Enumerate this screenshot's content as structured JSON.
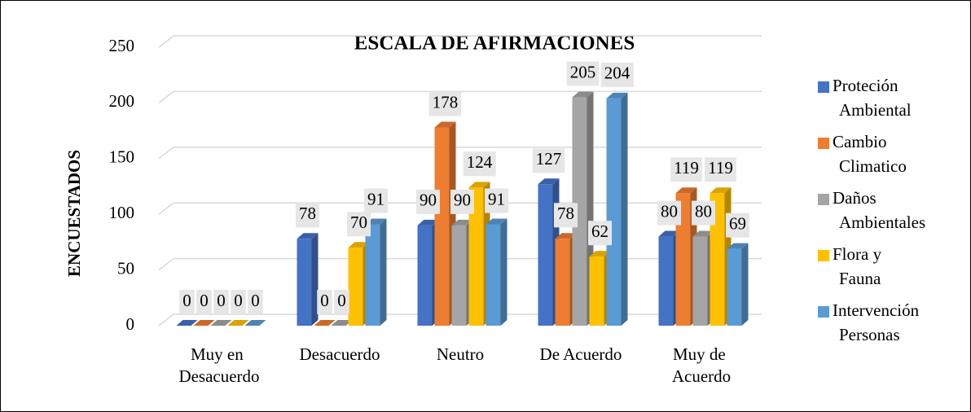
{
  "chart_data": {
    "type": "bar3d",
    "title": "ESCALA DE AFIRMACIONES",
    "y_label": "ENCUESTADOS",
    "categories": [
      "Muy en Desacuerdo",
      "Desacuerdo",
      "Neutro",
      "De Acuerdo",
      "Muy de Acuerdo"
    ],
    "series": [
      {
        "name": "Proteción Ambiental",
        "color": "#4472c4",
        "values": [
          0,
          78,
          90,
          127,
          80
        ]
      },
      {
        "name": "Cambio Climatico",
        "color": "#ed7d31",
        "values": [
          0,
          0,
          178,
          78,
          119
        ]
      },
      {
        "name": "Daños Ambientales",
        "color": "#a5a5a5",
        "values": [
          0,
          0,
          90,
          205,
          80
        ]
      },
      {
        "name": "Flora y Fauna",
        "color": "#ffc000",
        "values": [
          0,
          70,
          124,
          62,
          119
        ]
      },
      {
        "name": "Intervención Personas",
        "color": "#5b9bd5",
        "values": [
          0,
          91,
          91,
          204,
          69
        ]
      }
    ],
    "ylim": [
      0,
      250
    ],
    "yticks": [
      0,
      50,
      100,
      150,
      200,
      250
    ],
    "grid": true,
    "legend": "right"
  }
}
